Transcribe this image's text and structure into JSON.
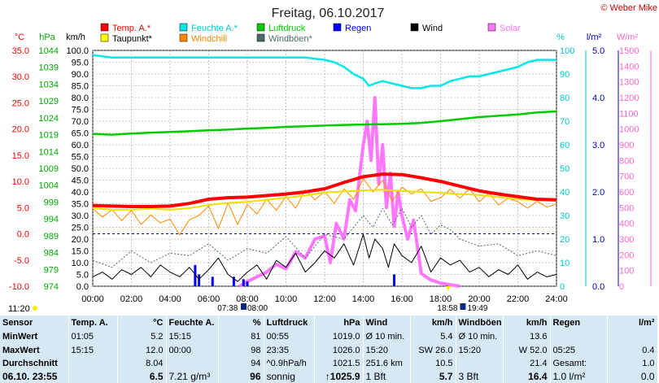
{
  "credit": "© Weber Mike",
  "chart_data": {
    "type": "line",
    "title": "Freitag, 06.10.2017",
    "x_ticks": [
      "00:00",
      "02:00",
      "04:00",
      "06:00",
      "08:00",
      "10:00",
      "12:00",
      "14:00",
      "16:00",
      "18:00",
      "20:00",
      "22:00",
      "24:00"
    ],
    "axes": {
      "temp": {
        "unit": "°C",
        "ticks": [
          "35.0",
          "30.0",
          "25.0",
          "20.0",
          "15.0",
          "10.0",
          "5.0",
          "0.0",
          "-5.0",
          "-10.0"
        ],
        "range": [
          -10,
          35
        ]
      },
      "pressure": {
        "unit": "hPa",
        "ticks": [
          "1044",
          "1039",
          "1034",
          "1029",
          "1024",
          "1019",
          "1014",
          "1009",
          "1004",
          "999",
          "994",
          "989",
          "984",
          "979",
          "974"
        ],
        "range": [
          974,
          1044
        ]
      },
      "wind": {
        "unit": "km/h",
        "ticks": [
          "100.0",
          "95.0",
          "90.0",
          "85.0",
          "80.0",
          "75.0",
          "70.0",
          "65.0",
          "60.0",
          "55.0",
          "50.0",
          "45.0",
          "40.0",
          "35.0",
          "30.0",
          "25.0",
          "20.0",
          "15.0",
          "10.0",
          "5.0",
          "0.0"
        ],
        "range": [
          0,
          100
        ]
      },
      "humidity": {
        "unit": "%",
        "ticks": [
          "100",
          "90",
          "80",
          "70",
          "60",
          "50",
          "40",
          "30",
          "20",
          "10",
          "0"
        ],
        "range": [
          0,
          100
        ]
      },
      "rain": {
        "unit": "l/m²",
        "ticks": [
          "5.0",
          "4.0",
          "3.0",
          "2.0",
          "1.0",
          "0.0"
        ],
        "range": [
          0,
          5
        ]
      },
      "solar": {
        "unit": "W/m²",
        "ticks": [
          "1500",
          "1400",
          "1300",
          "1200",
          "1100",
          "1000",
          "900",
          "800",
          "700",
          "600",
          "500",
          "400",
          "300",
          "200",
          "100",
          "0"
        ],
        "range": [
          0,
          1500
        ]
      }
    },
    "legend": [
      {
        "name": "Temp. A.*",
        "color": "#ff0000"
      },
      {
        "name": "Feuchte A.*",
        "color": "#00e8e8"
      },
      {
        "name": "Luftdruck",
        "color": "#00cc00"
      },
      {
        "name": "Regen",
        "color": "#0000ff"
      },
      {
        "name": "Wind",
        "color": "#000000"
      },
      {
        "name": "Solar",
        "color": "#ff77ff"
      },
      {
        "name": "Taupunkt*",
        "color": "#ffff00"
      },
      {
        "name": "Windchill",
        "color": "#ff8800"
      },
      {
        "name": "Windböen*",
        "color": "#4a6a6a"
      }
    ],
    "sun": {
      "left_label": "11:20",
      "sunrise_civil": "07:38",
      "sunrise": "08:00",
      "sunset": "18:58",
      "sunset_civil": "19:49"
    },
    "series": [
      {
        "name": "Temp. A.*",
        "axis": "temp",
        "color": "#ff0000",
        "x": [
          0,
          1,
          2,
          3,
          4,
          5,
          6,
          7,
          8,
          9,
          10,
          11,
          12,
          13,
          14,
          15,
          16,
          17,
          18,
          19,
          20,
          21,
          22,
          23,
          24
        ],
        "y": [
          5.4,
          5.3,
          5.2,
          5.2,
          5.3,
          5.8,
          6.6,
          6.9,
          7.0,
          7.3,
          7.6,
          8.0,
          8.6,
          9.8,
          10.9,
          11.4,
          11.3,
          10.7,
          10.0,
          9.1,
          8.2,
          7.6,
          7.1,
          6.6,
          6.5
        ]
      },
      {
        "name": "Taupunkt*",
        "axis": "temp",
        "color": "#ffff00",
        "x": [
          0,
          1,
          2,
          3,
          4,
          5,
          6,
          7,
          8,
          9,
          10,
          11,
          12,
          13,
          14,
          15,
          16,
          17,
          18,
          19,
          20,
          21,
          22,
          23,
          24
        ],
        "y": [
          4.9,
          4.6,
          4.6,
          4.8,
          4.6,
          4.9,
          5.5,
          5.9,
          6.1,
          6.5,
          6.9,
          7.3,
          7.9,
          8.1,
          8.3,
          8.4,
          8.2,
          8.0,
          7.8,
          7.6,
          7.4,
          7.0,
          6.6,
          6.4,
          6.3
        ]
      },
      {
        "name": "Windchill",
        "axis": "temp",
        "color": "#ff8800",
        "x": [
          0,
          0.5,
          1,
          1.5,
          2,
          2.5,
          3,
          3.5,
          4,
          4.5,
          5,
          5.5,
          6,
          6.5,
          7,
          7.5,
          8,
          8.5,
          9,
          9.5,
          10,
          10.5,
          11,
          11.5,
          12,
          12.5,
          13,
          13.5,
          14,
          14.5,
          15,
          15.5,
          16,
          16.5,
          17,
          17.5,
          18,
          18.5,
          19,
          19.5,
          20,
          20.5,
          21,
          21.5,
          22,
          22.5,
          23,
          23.5,
          24
        ],
        "y": [
          4.8,
          3.2,
          4.6,
          2.5,
          4.5,
          1.8,
          3.6,
          2.1,
          2.8,
          -0.2,
          2.7,
          3.5,
          5.3,
          1.0,
          5.9,
          1.8,
          5.6,
          3.8,
          6.6,
          4.5,
          7.1,
          4.9,
          8.4,
          6.5,
          8.1,
          5.8,
          8.6,
          6.6,
          10.6,
          8.0,
          10.2,
          6.2,
          8.9,
          7.6,
          8.6,
          6.2,
          6.9,
          8.5,
          6.8,
          8.6,
          6.1,
          7.8,
          5.5,
          6.8,
          6.1,
          4.9,
          6.2,
          5.1,
          5.7
        ]
      },
      {
        "name": "Feuchte A.*",
        "axis": "humidity",
        "color": "#00e8e8",
        "x": [
          0,
          1,
          2,
          3,
          4,
          5,
          6,
          7,
          8,
          9,
          10,
          11,
          12,
          12.5,
          13,
          13.5,
          14,
          14.3,
          14.6,
          15,
          15.5,
          16,
          16.5,
          17,
          17.5,
          18,
          18.5,
          19,
          19.5,
          20,
          21,
          22,
          22.5,
          23,
          23.5,
          24
        ],
        "y": [
          98,
          97,
          97,
          97,
          97,
          97,
          97,
          97,
          97,
          97,
          97,
          97,
          96,
          95,
          93,
          90,
          88,
          85,
          86,
          87,
          86,
          85,
          84,
          84,
          85,
          85,
          87,
          88,
          89,
          89,
          91,
          93,
          95,
          96,
          96,
          96
        ],
        "label_positions": "series color"
      },
      {
        "name": "Luftdruck",
        "axis": "pressure",
        "color": "#00cc00",
        "x": [
          0,
          1,
          2,
          3,
          4,
          5,
          6,
          7,
          8,
          9,
          10,
          11,
          12,
          13,
          14,
          15,
          16,
          17,
          18,
          19,
          20,
          21,
          22,
          23,
          24
        ],
        "y": [
          1019.2,
          1019.0,
          1019.3,
          1019.6,
          1019.8,
          1020.0,
          1020.3,
          1020.5,
          1020.8,
          1021.0,
          1021.3,
          1021.5,
          1021.7,
          1021.9,
          1022.0,
          1022.1,
          1022.2,
          1022.5,
          1023.0,
          1023.6,
          1024.2,
          1024.6,
          1025.0,
          1025.6,
          1025.9
        ]
      },
      {
        "name": "Wind",
        "axis": "wind",
        "color": "#000000",
        "x": [
          0,
          0.5,
          1,
          1.5,
          2,
          2.5,
          3,
          3.5,
          4,
          4.5,
          5,
          5.5,
          6,
          6.5,
          7,
          7.5,
          8,
          8.5,
          9,
          9.5,
          10,
          10.5,
          11,
          11.5,
          12,
          12.5,
          13,
          13.5,
          14,
          14.3,
          14.6,
          15,
          15.3,
          15.6,
          16,
          16.5,
          17,
          17.5,
          18,
          18.5,
          19,
          19.5,
          20,
          20.5,
          21,
          21.5,
          22,
          22.5,
          23,
          23.5,
          24
        ],
        "y": [
          4,
          6,
          3,
          7,
          5,
          8,
          4,
          9,
          6,
          4,
          8,
          3,
          7,
          12,
          5,
          2,
          6,
          9,
          3,
          11,
          8,
          14,
          6,
          10,
          15,
          12,
          18,
          9,
          22,
          12,
          20,
          16,
          8,
          18,
          13,
          10,
          17,
          6,
          12,
          9,
          11,
          6,
          8,
          4,
          7,
          5,
          9,
          3,
          6,
          4,
          5
        ]
      },
      {
        "name": "Windböen*",
        "axis": "wind",
        "color": "#4a6a6a",
        "x": [
          0,
          1,
          2,
          3,
          4,
          5,
          6,
          7,
          8,
          9,
          10,
          11,
          12,
          13,
          14,
          14.5,
          15,
          15.5,
          16,
          16.5,
          17,
          17.5,
          18,
          18.5,
          19,
          20,
          21,
          22,
          23,
          24
        ],
        "y": [
          11,
          8,
          15,
          10,
          14,
          13,
          18,
          11,
          16,
          14,
          21,
          12,
          22,
          20,
          30,
          25,
          33,
          26,
          33,
          25,
          30,
          22,
          26,
          24,
          20,
          17,
          18,
          13,
          15,
          13
        ]
      },
      {
        "name": "Solar",
        "axis": "solar",
        "color": "#ff77ff",
        "x": [
          7.6,
          8,
          8.5,
          9,
          9.5,
          10,
          10.5,
          11,
          11.5,
          12,
          12.3,
          12.6,
          13,
          13.3,
          13.6,
          14,
          14.2,
          14.4,
          14.6,
          14.8,
          15,
          15.2,
          15.4,
          15.6,
          15.8,
          16,
          16.3,
          16.6,
          17,
          17.5,
          18,
          18.5,
          19
        ],
        "y": [
          0,
          30,
          60,
          90,
          140,
          110,
          220,
          180,
          300,
          320,
          150,
          400,
          300,
          550,
          480,
          900,
          1050,
          800,
          1200,
          650,
          900,
          500,
          720,
          380,
          600,
          450,
          300,
          420,
          80,
          40,
          20,
          10,
          0
        ]
      },
      {
        "name": "Regen",
        "axis": "rain",
        "type": "bar",
        "color": "#0000ff",
        "x": [
          5.3,
          5.5,
          6.2,
          7.3,
          7.8,
          8.0,
          15.6
        ],
        "y": [
          0.45,
          0.25,
          0.2,
          0.2,
          0.15,
          0.1,
          0.25
        ]
      }
    ]
  },
  "stats": {
    "headers": [
      "Sensor",
      "Temp. A.",
      "°C",
      "Feuchte A.",
      "%",
      "Luftdruck",
      "hPa",
      "Wind",
      "km/h",
      "Windböen",
      "km/h",
      "Regen",
      "l/m²"
    ],
    "rows": [
      {
        "label": "MinWert",
        "c": [
          "01:05",
          "5.2",
          "15:15",
          "81",
          "00:55",
          "1019.0",
          "Ø 10 min.",
          "5.4",
          "Ø 10 min.",
          "13.6",
          "",
          ""
        ]
      },
      {
        "label": "MaxWert",
        "c": [
          "15:15",
          "12.0",
          "00:00",
          "98",
          "23:35",
          "1026.0",
          "15:20",
          "SW 26.0",
          "15:20",
          "W 52.0",
          "05:25",
          "0.4"
        ]
      },
      {
        "label": "Durchschnitt",
        "c": [
          "",
          "8.04",
          "",
          "94",
          "^0.9hPa/h",
          "1021.5",
          "251.6 km",
          "10.5",
          "",
          "21.4",
          "Gesamt:",
          "1.0"
        ]
      },
      {
        "label": "06.10. 23:55",
        "c": [
          "",
          "6.5",
          "7.21 g/m³",
          "96",
          "sonnig",
          "↑1025.9",
          "1 Bft",
          "5.7",
          "3 Bft",
          "16.4",
          "1.0 l/m²",
          "0.0"
        ]
      }
    ]
  }
}
